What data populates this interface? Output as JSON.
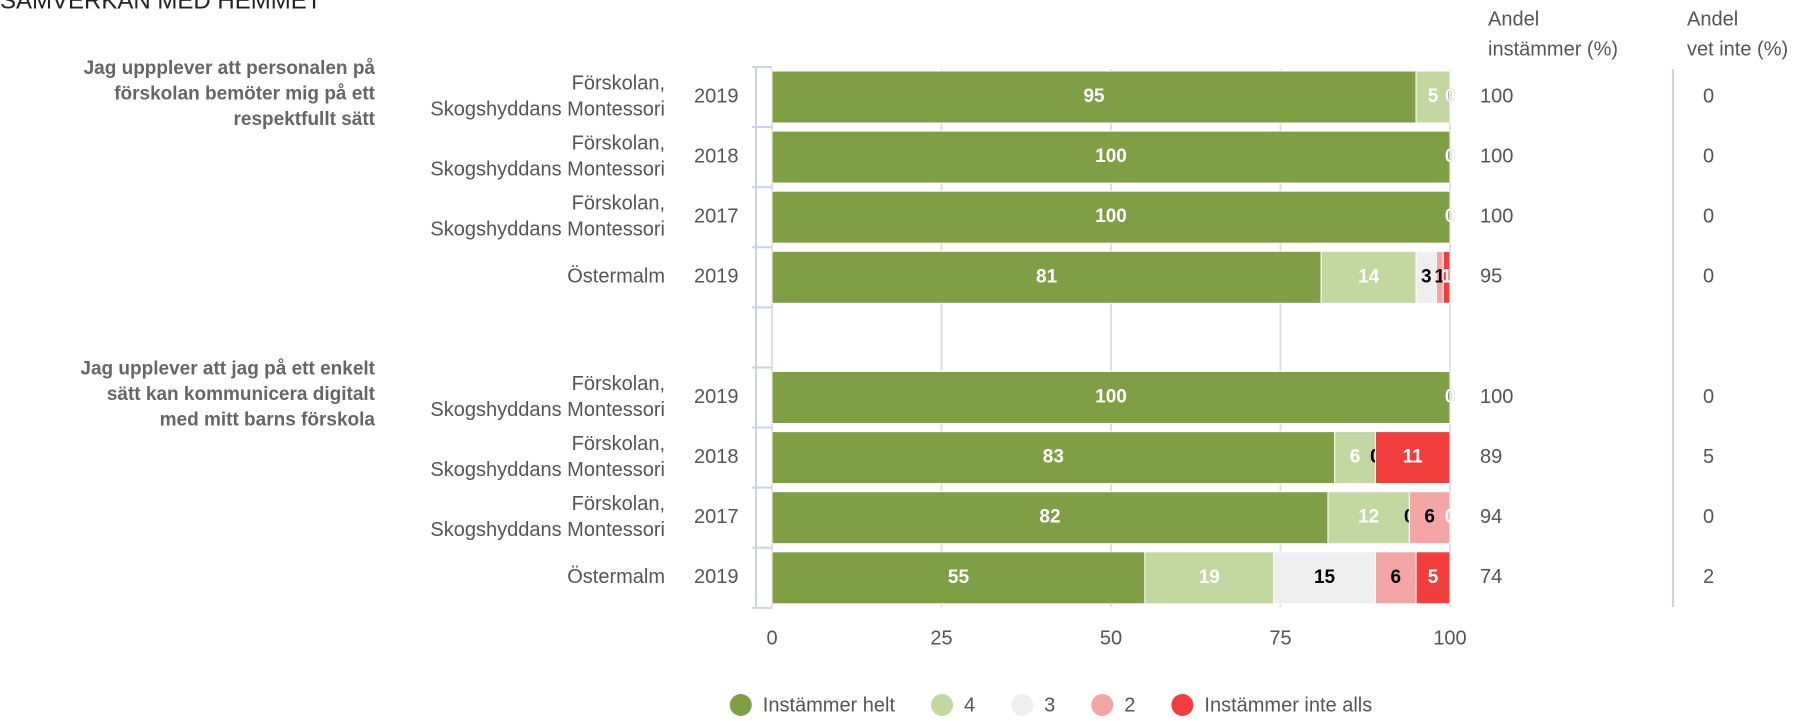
{
  "chart_data": {
    "type": "bar",
    "orientation": "horizontal",
    "stacked": true,
    "title": "SAMVERKAN MED HEMMET",
    "xlim": [
      0,
      100
    ],
    "xticks": [
      0,
      25,
      50,
      75,
      100
    ],
    "grid": true,
    "legend": "bottom",
    "groups": [
      {
        "title": [
          "Jag uppplever att personalen på",
          "förskolan bemöter mig på ett",
          "respektfullt sätt"
        ],
        "rows": [
          {
            "label": [
              "Förskolan,",
              "Skogshyddans Montessori"
            ],
            "year": "2019"
          },
          {
            "label": [
              "Förskolan,",
              "Skogshyddans Montessori"
            ],
            "year": "2018"
          },
          {
            "label": [
              "Förskolan,",
              "Skogshyddans Montessori"
            ],
            "year": "2017"
          },
          {
            "label": [
              "Östermalm"
            ],
            "year": "2019"
          }
        ]
      },
      {
        "title": [
          "Jag upplever att jag på ett enkelt",
          "sätt kan kommunicera digitalt",
          "med mitt barns förskola"
        ],
        "rows": [
          {
            "label": [
              "Förskolan,",
              "Skogshyddans Montessori"
            ],
            "year": "2019"
          },
          {
            "label": [
              "Förskolan,",
              "Skogshyddans Montessori"
            ],
            "year": "2018"
          },
          {
            "label": [
              "Förskolan,",
              "Skogshyddans Montessori"
            ],
            "year": "2017"
          },
          {
            "label": [
              "Östermalm"
            ],
            "year": "2019"
          }
        ]
      }
    ],
    "series": [
      {
        "name": "Instämmer helt",
        "color": "#7f9f45",
        "label_color": "#ffffff",
        "values": [
          95,
          100,
          100,
          81,
          100,
          83,
          82,
          55
        ]
      },
      {
        "name": "4",
        "color": "#c3d7a0",
        "label_color": "#ffffff",
        "values": [
          5,
          0,
          0,
          14,
          0,
          6,
          12,
          19
        ]
      },
      {
        "name": "3",
        "color": "#efefef",
        "label_color": "#000000",
        "values": [
          0,
          0,
          0,
          3,
          0,
          0,
          0,
          15
        ]
      },
      {
        "name": "2",
        "color": "#f4a6a6",
        "label_color": "#000000",
        "values": [
          0,
          0,
          0,
          1,
          0,
          0,
          6,
          6
        ]
      },
      {
        "name": "Instämmer inte alls",
        "color": "#f23d3d",
        "label_color": "#ffffff",
        "values": [
          0,
          0,
          0,
          1,
          0,
          11,
          0,
          5
        ]
      }
    ],
    "columns": [
      {
        "header": [
          "Andel",
          "instämmer (%)"
        ],
        "values": [
          100,
          100,
          100,
          95,
          100,
          89,
          94,
          74
        ]
      },
      {
        "header": [
          "Andel",
          "vet inte (%)"
        ],
        "values": [
          0,
          0,
          0,
          0,
          0,
          5,
          0,
          2
        ]
      }
    ]
  }
}
